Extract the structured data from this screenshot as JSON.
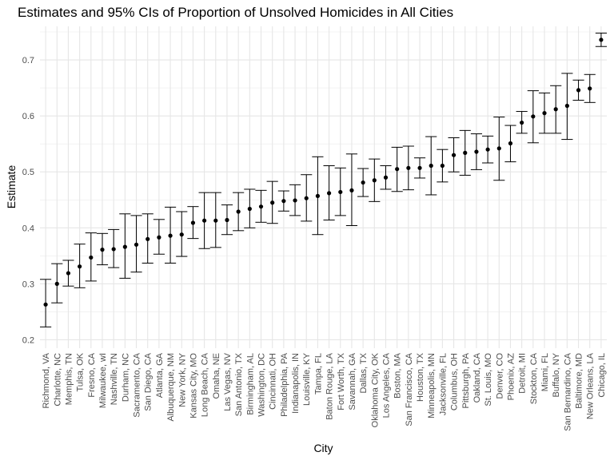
{
  "chart_data": {
    "type": "scatter",
    "title": "Estimates and 95% CIs of Proportion of Unsolved Homicides in All Cities",
    "xlabel": "City",
    "ylabel": "Estimate",
    "ylim": [
      0.185,
      0.76
    ],
    "yticks": [
      "0.2",
      "0.3",
      "0.4",
      "0.5",
      "0.6",
      "0.7"
    ],
    "grid": true,
    "categories": [
      "Richmond, VA",
      "Charlotte, NC",
      "Memphis, TN",
      "Tulsa, OK",
      "Fresno, CA",
      "Milwaukee, wI",
      "Nashville, TN",
      "Durham, NC",
      "Sacramento, CA",
      "San Diego, CA",
      "Atlanta, GA",
      "Albuquerque, NM",
      "New York, NY",
      "Kansas City, MO",
      "Long Beach, CA",
      "Omaha, NE",
      "Las Vegas, NV",
      "San Antonio, TX",
      "Birmingham, AL",
      "Washington, DC",
      "Cincinnati, OH",
      "Philadelphia, PA",
      "Indianapolis, IN",
      "Louisville, KY",
      "Tampa, FL",
      "Baton Rouge, LA",
      "Fort Worth, TX",
      "Savannah, GA",
      "Dallas, TX",
      "Oklahoma City, OK",
      "Los Angeles, CA",
      "Boston, MA",
      "San Francisco, CA",
      "Houston, TX",
      "Minneapolis, MN",
      "Jacksonville, FL",
      "Columbus, OH",
      "Pittsburgh, PA",
      "Oakland, CA",
      "St. Louis, MO",
      "Denver, CO",
      "Phoenix, AZ",
      "Detroit, MI",
      "Stockton, CA",
      "Miami, FL",
      "Buffalo, NY",
      "San Bernardino, CA",
      "Baltimore, MD",
      "New Orleans, LA",
      "Chicago, IL"
    ],
    "estimate": [
      0.263,
      0.3,
      0.319,
      0.331,
      0.347,
      0.361,
      0.362,
      0.366,
      0.37,
      0.38,
      0.383,
      0.386,
      0.388,
      0.409,
      0.413,
      0.413,
      0.414,
      0.429,
      0.434,
      0.438,
      0.445,
      0.448,
      0.449,
      0.453,
      0.457,
      0.462,
      0.464,
      0.467,
      0.481,
      0.485,
      0.49,
      0.505,
      0.507,
      0.507,
      0.511,
      0.511,
      0.53,
      0.534,
      0.536,
      0.54,
      0.542,
      0.551,
      0.588,
      0.599,
      0.605,
      0.612,
      0.618,
      0.646,
      0.649,
      0.736
    ],
    "lower": [
      0.223,
      0.266,
      0.296,
      0.293,
      0.305,
      0.334,
      0.329,
      0.31,
      0.321,
      0.337,
      0.353,
      0.337,
      0.349,
      0.381,
      0.363,
      0.365,
      0.388,
      0.395,
      0.4,
      0.41,
      0.408,
      0.43,
      0.422,
      0.412,
      0.388,
      0.414,
      0.422,
      0.404,
      0.456,
      0.447,
      0.469,
      0.465,
      0.468,
      0.489,
      0.459,
      0.482,
      0.5,
      0.494,
      0.504,
      0.516,
      0.485,
      0.518,
      0.569,
      0.552,
      0.569,
      0.569,
      0.558,
      0.628,
      0.624,
      0.724
    ],
    "upper": [
      0.308,
      0.336,
      0.342,
      0.371,
      0.391,
      0.39,
      0.397,
      0.425,
      0.422,
      0.425,
      0.415,
      0.437,
      0.429,
      0.438,
      0.463,
      0.463,
      0.441,
      0.463,
      0.469,
      0.467,
      0.483,
      0.466,
      0.477,
      0.495,
      0.527,
      0.511,
      0.507,
      0.532,
      0.506,
      0.523,
      0.511,
      0.544,
      0.546,
      0.525,
      0.563,
      0.54,
      0.561,
      0.574,
      0.568,
      0.564,
      0.598,
      0.583,
      0.608,
      0.645,
      0.641,
      0.654,
      0.676,
      0.664,
      0.674,
      0.748
    ]
  }
}
